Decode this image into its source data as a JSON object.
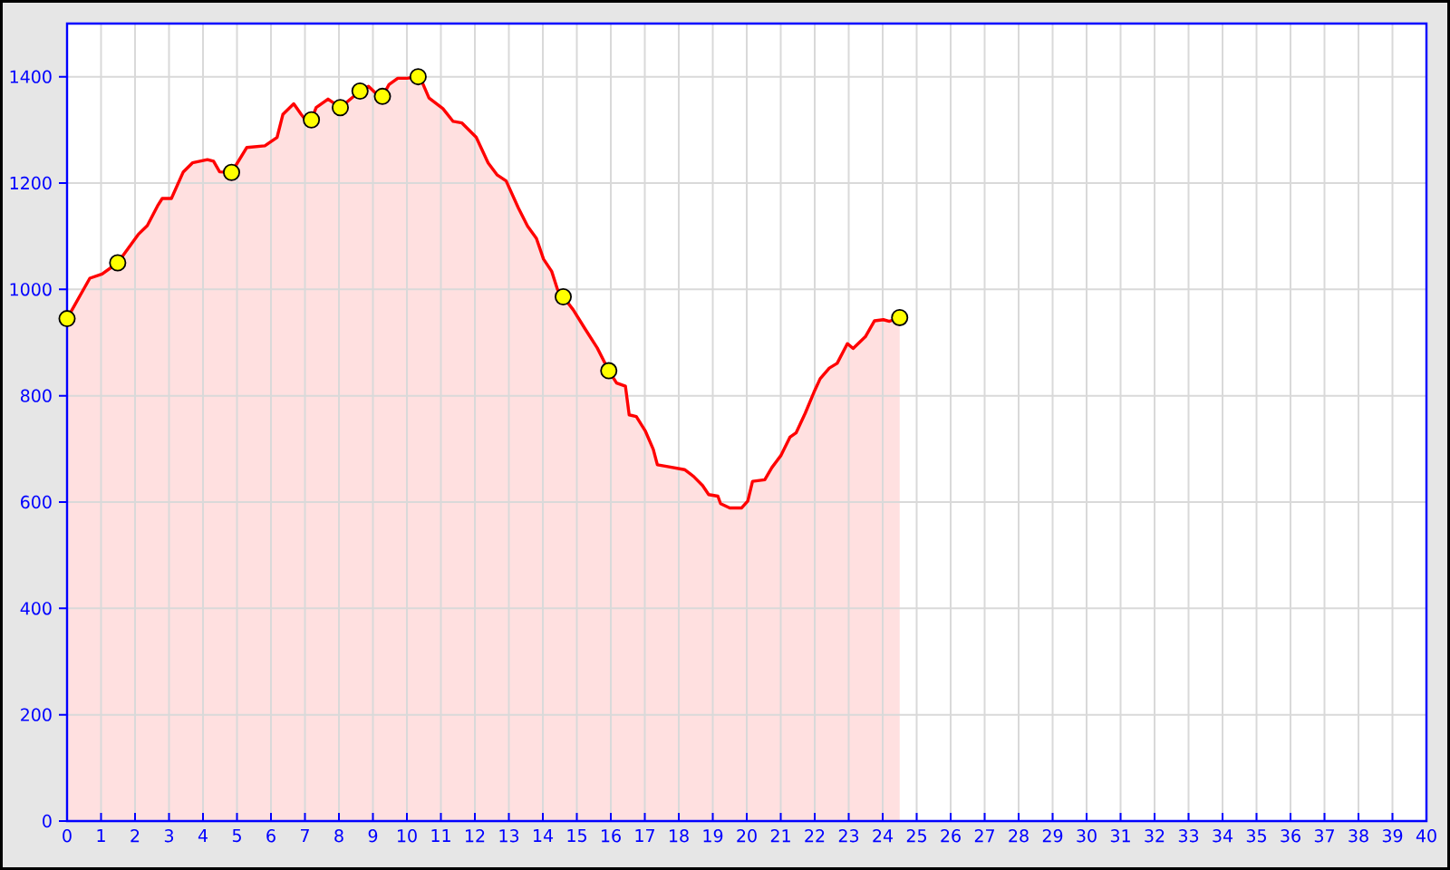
{
  "chart_data": {
    "type": "area",
    "xlim": [
      0,
      40
    ],
    "ylim": [
      0,
      1500
    ],
    "xticks": [
      0,
      1,
      2,
      3,
      4,
      5,
      6,
      7,
      8,
      9,
      10,
      11,
      12,
      13,
      14,
      15,
      16,
      17,
      18,
      19,
      20,
      21,
      22,
      23,
      24,
      25,
      26,
      27,
      28,
      29,
      30,
      31,
      32,
      33,
      34,
      35,
      36,
      37,
      38,
      39,
      40
    ],
    "yticks": [
      0,
      200,
      400,
      600,
      800,
      1000,
      1200,
      1400
    ],
    "grid": true,
    "series": [
      {
        "color": "#ff0000",
        "x": [
          0,
          0.67,
          1.03,
          1.49,
          2.09,
          2.36,
          2.68,
          2.8,
          3.07,
          3.42,
          3.69,
          4.13,
          4.31,
          4.49,
          4.84,
          5.29,
          5.82,
          6.18,
          6.35,
          6.67,
          6.89,
          7.1,
          7.19,
          7.33,
          7.68,
          8.04,
          8.62,
          8.87,
          9.1,
          9.28,
          9.47,
          9.73,
          10.0,
          10.33,
          10.44,
          10.65,
          11.06,
          11.36,
          11.62,
          12.04,
          12.39,
          12.66,
          12.92,
          13.28,
          13.55,
          13.81,
          14.02,
          14.26,
          14.43,
          14.6,
          14.89,
          15.24,
          15.6,
          15.94,
          16.17,
          16.43,
          16.54,
          16.75,
          17.02,
          17.25,
          17.37,
          17.64,
          18.17,
          18.44,
          18.7,
          18.88,
          19.15,
          19.23,
          19.5,
          19.85,
          20.03,
          20.17,
          20.53,
          20.74,
          21.01,
          21.27,
          21.45,
          21.72,
          21.98,
          22.16,
          22.43,
          22.66,
          22.96,
          23.13,
          23.49,
          23.76,
          24.02,
          24.2,
          24.5
        ],
        "values": [
          945,
          1021,
          1029,
          1050,
          1103,
          1120,
          1159,
          1171,
          1171,
          1221,
          1238,
          1244,
          1241,
          1221,
          1220,
          1267,
          1270,
          1286,
          1329,
          1349,
          1329,
          1312,
          1319,
          1342,
          1358,
          1342,
          1373,
          1382,
          1368,
          1363,
          1385,
          1397,
          1397,
          1400,
          1391,
          1360,
          1340,
          1316,
          1313,
          1286,
          1238,
          1215,
          1204,
          1153,
          1119,
          1096,
          1057,
          1034,
          1000,
          986,
          962,
          926,
          890,
          847,
          824,
          818,
          764,
          761,
          733,
          699,
          670,
          667,
          661,
          648,
          631,
          614,
          611,
          597,
          589,
          589,
          602,
          639,
          642,
          665,
          688,
          722,
          730,
          767,
          807,
          832,
          852,
          861,
          898,
          889,
          911,
          941,
          943,
          940,
          947
        ]
      },
      {
        "type": "scatter",
        "color": "#ffff00",
        "marker": "circle",
        "x": [
          0,
          1.49,
          4.84,
          7.19,
          8.04,
          8.62,
          9.28,
          10.33,
          14.6,
          15.94,
          24.5
        ],
        "values": [
          945,
          1050,
          1220,
          1319,
          1342,
          1373,
          1363,
          1400,
          986,
          847,
          947
        ]
      }
    ]
  }
}
